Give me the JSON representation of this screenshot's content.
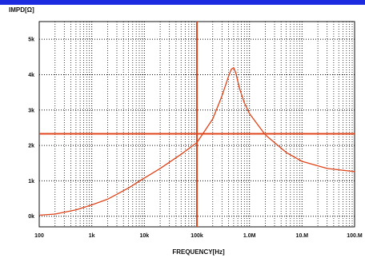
{
  "chart_data": {
    "type": "line",
    "ylabel": "IMPD[Ω]",
    "xlabel": "FREQUENCY[Hz]",
    "x_scale": "log",
    "xlim": [
      100,
      100000000
    ],
    "ylim": [
      -300,
      5500
    ],
    "x_ticks": [
      {
        "value": 100,
        "label": "100"
      },
      {
        "value": 1000,
        "label": "1k"
      },
      {
        "value": 10000,
        "label": "10k"
      },
      {
        "value": 100000,
        "label": "100k"
      },
      {
        "value": 1000000,
        "label": "1.0M"
      },
      {
        "value": 10000000,
        "label": "10.M"
      },
      {
        "value": 100000000,
        "label": "100.M"
      }
    ],
    "y_ticks": [
      {
        "value": 0,
        "label": "0k"
      },
      {
        "value": 1000,
        "label": "1k"
      },
      {
        "value": 2000,
        "label": "2k"
      },
      {
        "value": 3000,
        "label": "3k"
      },
      {
        "value": 4000,
        "label": "4k"
      },
      {
        "value": 5000,
        "label": "5k"
      }
    ],
    "grid": true,
    "cursor": {
      "x": 100000,
      "y": 2330
    },
    "series": [
      {
        "points": [
          [
            100,
            30
          ],
          [
            200,
            60
          ],
          [
            500,
            180
          ],
          [
            1000,
            320
          ],
          [
            2000,
            480
          ],
          [
            5000,
            800
          ],
          [
            10000,
            1080
          ],
          [
            20000,
            1350
          ],
          [
            50000,
            1750
          ],
          [
            100000,
            2080
          ],
          [
            200000,
            2750
          ],
          [
            300000,
            3400
          ],
          [
            400000,
            3950
          ],
          [
            450000,
            4150
          ],
          [
            500000,
            4200
          ],
          [
            550000,
            4050
          ],
          [
            650000,
            3600
          ],
          [
            800000,
            3200
          ],
          [
            1000000,
            2900
          ],
          [
            2000000,
            2300
          ],
          [
            5000000,
            1800
          ],
          [
            10000000,
            1550
          ],
          [
            30000000,
            1350
          ],
          [
            100000000,
            1260
          ]
        ]
      }
    ],
    "colors": {
      "curve": "#e0441a",
      "cursor": "#e0441a",
      "grid": "#111111",
      "title_bar": "#1c2be0"
    }
  }
}
